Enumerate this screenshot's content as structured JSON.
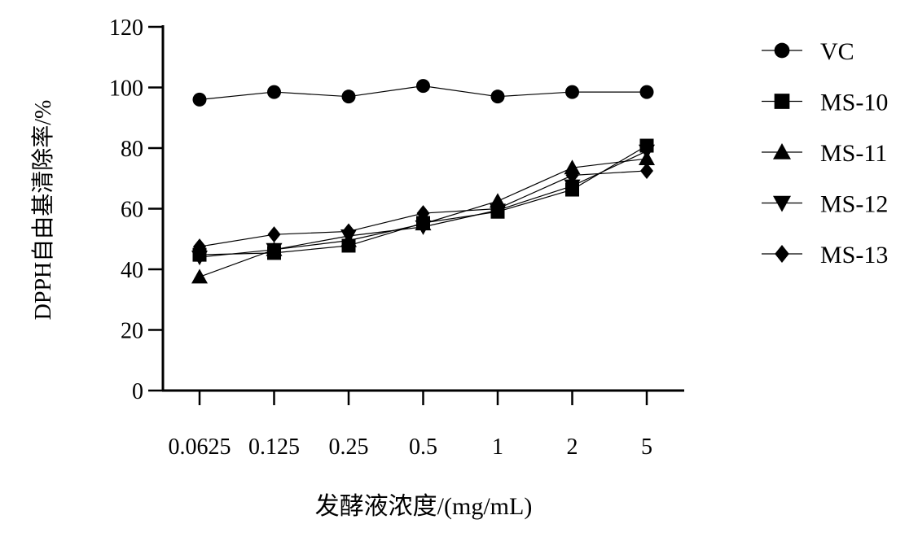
{
  "chart_data": {
    "type": "line",
    "title": "",
    "xlabel": "发酵液浓度/(mg/mL)",
    "ylabel": "DPPH自由基清除率/%",
    "categories": [
      "0.0625",
      "0.125",
      "0.25",
      "0.5",
      "1",
      "2",
      "5"
    ],
    "yticks": [
      "0",
      "20",
      "40",
      "60",
      "80",
      "100",
      "120"
    ],
    "ylim": [
      0,
      120
    ],
    "grid": false,
    "legend_position": "right",
    "series": [
      {
        "name": "VC",
        "marker": "circle",
        "values": [
          96,
          98.5,
          97,
          100.5,
          97,
          98.5,
          98.5
        ]
      },
      {
        "name": "MS-10",
        "marker": "square",
        "values": [
          44.8,
          45.4,
          47.8,
          55.3,
          59,
          66.3,
          80.8
        ]
      },
      {
        "name": "MS-11",
        "marker": "triangle-up",
        "values": [
          37.5,
          46.5,
          49.5,
          55,
          62.5,
          73.5,
          76.5
        ]
      },
      {
        "name": "MS-12",
        "marker": "triangle-down",
        "values": [
          44,
          46.5,
          51,
          54,
          59.5,
          67.5,
          79
        ]
      },
      {
        "name": "MS-13",
        "marker": "diamond",
        "values": [
          47.5,
          51.5,
          52.5,
          58.5,
          60,
          71,
          72.5
        ]
      }
    ]
  }
}
